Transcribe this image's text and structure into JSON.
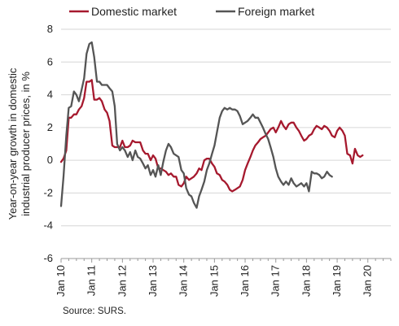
{
  "chart_data": {
    "type": "line",
    "ylabel_lines": [
      "Year-on-year growth in domestic",
      "industrial producer prices, in %"
    ],
    "xlabel": "",
    "ylim": [
      -6,
      8
    ],
    "yticks": [
      -6,
      -4,
      -2,
      0,
      2,
      4,
      6,
      8
    ],
    "xlim": [
      2010.0,
      2020.75
    ],
    "xtick_labels": [
      "Jan 10",
      "Jan 11",
      "Jan 12",
      "Jan 13",
      "Jan 14",
      "Jan 15",
      "Jan 16",
      "Jan 17",
      "Jan 18",
      "Jan 19",
      "Jan 20"
    ],
    "xtick_values": [
      2010,
      2011,
      2012,
      2013,
      2014,
      2015,
      2016,
      2017,
      2018,
      2019,
      2020
    ],
    "grid": "horizontal",
    "legend_position": "top",
    "series": [
      {
        "name": "Domestic market",
        "color": "#a6192e",
        "points": [
          [
            2010.0,
            -0.1
          ],
          [
            2010.08,
            0.1
          ],
          [
            2010.17,
            0.6
          ],
          [
            2010.25,
            2.6
          ],
          [
            2010.33,
            2.6
          ],
          [
            2010.42,
            2.8
          ],
          [
            2010.5,
            2.8
          ],
          [
            2010.58,
            3.1
          ],
          [
            2010.67,
            3.3
          ],
          [
            2010.75,
            3.8
          ],
          [
            2010.83,
            4.8
          ],
          [
            2010.92,
            4.8
          ],
          [
            2011.0,
            4.9
          ],
          [
            2011.08,
            3.7
          ],
          [
            2011.17,
            3.7
          ],
          [
            2011.25,
            3.8
          ],
          [
            2011.33,
            3.6
          ],
          [
            2011.42,
            3.1
          ],
          [
            2011.5,
            2.9
          ],
          [
            2011.58,
            2.4
          ],
          [
            2011.67,
            0.9
          ],
          [
            2011.75,
            0.8
          ],
          [
            2011.83,
            0.8
          ],
          [
            2011.92,
            0.8
          ],
          [
            2012.0,
            1.2
          ],
          [
            2012.08,
            0.8
          ],
          [
            2012.17,
            0.8
          ],
          [
            2012.25,
            0.9
          ],
          [
            2012.33,
            1.2
          ],
          [
            2012.42,
            1.1
          ],
          [
            2012.5,
            1.1
          ],
          [
            2012.58,
            1.1
          ],
          [
            2012.67,
            0.6
          ],
          [
            2012.75,
            0.4
          ],
          [
            2012.83,
            0.4
          ],
          [
            2012.92,
            0.0
          ],
          [
            2013.0,
            0.3
          ],
          [
            2013.08,
            0.1
          ],
          [
            2013.17,
            -0.5
          ],
          [
            2013.25,
            -0.5
          ],
          [
            2013.33,
            -0.6
          ],
          [
            2013.42,
            -0.7
          ],
          [
            2013.5,
            -0.9
          ],
          [
            2013.58,
            -0.8
          ],
          [
            2013.67,
            -1.0
          ],
          [
            2013.75,
            -1.0
          ],
          [
            2013.83,
            -1.5
          ],
          [
            2013.92,
            -1.6
          ],
          [
            2014.0,
            -1.4
          ],
          [
            2014.08,
            -1.0
          ],
          [
            2014.17,
            -1.2
          ],
          [
            2014.25,
            -1.1
          ],
          [
            2014.33,
            -1.0
          ],
          [
            2014.42,
            -0.8
          ],
          [
            2014.5,
            -0.5
          ],
          [
            2014.58,
            -0.6
          ],
          [
            2014.67,
            0.0
          ],
          [
            2014.75,
            0.1
          ],
          [
            2014.83,
            0.1
          ],
          [
            2014.92,
            -0.2
          ],
          [
            2015.0,
            -0.4
          ],
          [
            2015.08,
            -0.8
          ],
          [
            2015.17,
            -0.9
          ],
          [
            2015.25,
            -1.2
          ],
          [
            2015.33,
            -1.3
          ],
          [
            2015.42,
            -1.5
          ],
          [
            2015.5,
            -1.8
          ],
          [
            2015.58,
            -1.9
          ],
          [
            2015.67,
            -1.8
          ],
          [
            2015.75,
            -1.7
          ],
          [
            2015.83,
            -1.6
          ],
          [
            2015.92,
            -1.2
          ],
          [
            2016.0,
            -0.6
          ],
          [
            2016.08,
            -0.2
          ],
          [
            2016.17,
            0.2
          ],
          [
            2016.25,
            0.6
          ],
          [
            2016.33,
            0.9
          ],
          [
            2016.42,
            1.1
          ],
          [
            2016.5,
            1.3
          ],
          [
            2016.58,
            1.4
          ],
          [
            2016.67,
            1.5
          ],
          [
            2016.75,
            1.7
          ],
          [
            2016.83,
            1.9
          ],
          [
            2016.92,
            2.0
          ],
          [
            2017.0,
            1.7
          ],
          [
            2017.08,
            2.0
          ],
          [
            2017.17,
            2.4
          ],
          [
            2017.25,
            2.1
          ],
          [
            2017.33,
            1.9
          ],
          [
            2017.42,
            2.2
          ],
          [
            2017.5,
            2.3
          ],
          [
            2017.58,
            2.3
          ],
          [
            2017.67,
            2.0
          ],
          [
            2017.75,
            1.8
          ],
          [
            2017.83,
            1.5
          ],
          [
            2017.92,
            1.2
          ],
          [
            2018.0,
            1.3
          ],
          [
            2018.08,
            1.5
          ],
          [
            2018.17,
            1.6
          ],
          [
            2018.25,
            1.9
          ],
          [
            2018.33,
            2.1
          ],
          [
            2018.42,
            2.0
          ],
          [
            2018.5,
            1.9
          ],
          [
            2018.58,
            2.1
          ],
          [
            2018.67,
            2.0
          ],
          [
            2018.75,
            1.8
          ],
          [
            2018.83,
            1.5
          ],
          [
            2018.92,
            1.4
          ],
          [
            2019.0,
            1.8
          ],
          [
            2019.08,
            2.0
          ],
          [
            2019.17,
            1.8
          ],
          [
            2019.25,
            1.5
          ],
          [
            2019.33,
            0.4
          ],
          [
            2019.42,
            0.3
          ],
          [
            2019.5,
            -0.2
          ],
          [
            2019.58,
            0.7
          ],
          [
            2019.67,
            0.3
          ],
          [
            2019.75,
            0.2
          ],
          [
            2019.83,
            0.3
          ]
        ]
      },
      {
        "name": "Foreign market",
        "color": "#555555",
        "points": [
          [
            2010.0,
            -2.8
          ],
          [
            2010.08,
            -1.0
          ],
          [
            2010.17,
            1.5
          ],
          [
            2010.25,
            3.2
          ],
          [
            2010.33,
            3.3
          ],
          [
            2010.42,
            4.2
          ],
          [
            2010.5,
            4.0
          ],
          [
            2010.58,
            3.6
          ],
          [
            2010.67,
            4.3
          ],
          [
            2010.75,
            5.0
          ],
          [
            2010.83,
            6.5
          ],
          [
            2010.92,
            7.1
          ],
          [
            2011.0,
            7.2
          ],
          [
            2011.08,
            6.3
          ],
          [
            2011.17,
            4.8
          ],
          [
            2011.25,
            4.8
          ],
          [
            2011.33,
            4.6
          ],
          [
            2011.42,
            4.6
          ],
          [
            2011.5,
            4.6
          ],
          [
            2011.58,
            4.4
          ],
          [
            2011.67,
            4.2
          ],
          [
            2011.75,
            3.3
          ],
          [
            2011.83,
            1.0
          ],
          [
            2011.92,
            0.6
          ],
          [
            2012.0,
            0.8
          ],
          [
            2012.08,
            0.6
          ],
          [
            2012.17,
            0.2
          ],
          [
            2012.25,
            0.5
          ],
          [
            2012.33,
            0.0
          ],
          [
            2012.42,
            0.6
          ],
          [
            2012.5,
            0.2
          ],
          [
            2012.58,
            0.1
          ],
          [
            2012.67,
            -0.2
          ],
          [
            2012.75,
            -0.5
          ],
          [
            2012.83,
            -0.3
          ],
          [
            2012.92,
            -0.9
          ],
          [
            2013.0,
            -0.6
          ],
          [
            2013.08,
            -1.0
          ],
          [
            2013.17,
            -0.3
          ],
          [
            2013.25,
            -0.9
          ],
          [
            2013.33,
            -0.1
          ],
          [
            2013.42,
            0.6
          ],
          [
            2013.5,
            1.0
          ],
          [
            2013.58,
            0.8
          ],
          [
            2013.67,
            0.4
          ],
          [
            2013.75,
            0.3
          ],
          [
            2013.83,
            0.2
          ],
          [
            2013.92,
            -0.6
          ],
          [
            2014.0,
            -0.8
          ],
          [
            2014.08,
            -1.7
          ],
          [
            2014.17,
            -2.1
          ],
          [
            2014.25,
            -2.2
          ],
          [
            2014.33,
            -2.6
          ],
          [
            2014.42,
            -2.9
          ],
          [
            2014.5,
            -2.2
          ],
          [
            2014.58,
            -1.8
          ],
          [
            2014.67,
            -1.3
          ],
          [
            2014.75,
            -0.6
          ],
          [
            2014.83,
            -0.2
          ],
          [
            2014.92,
            0.4
          ],
          [
            2015.0,
            0.9
          ],
          [
            2015.08,
            1.7
          ],
          [
            2015.17,
            2.6
          ],
          [
            2015.25,
            3.0
          ],
          [
            2015.33,
            3.2
          ],
          [
            2015.42,
            3.1
          ],
          [
            2015.5,
            3.2
          ],
          [
            2015.58,
            3.1
          ],
          [
            2015.67,
            3.1
          ],
          [
            2015.75,
            3.0
          ],
          [
            2015.83,
            2.7
          ],
          [
            2015.92,
            2.2
          ],
          [
            2016.0,
            2.3
          ],
          [
            2016.08,
            2.4
          ],
          [
            2016.17,
            2.6
          ],
          [
            2016.25,
            2.8
          ],
          [
            2016.33,
            2.6
          ],
          [
            2016.42,
            2.6
          ],
          [
            2016.5,
            2.3
          ],
          [
            2016.58,
            2.0
          ],
          [
            2016.67,
            1.6
          ],
          [
            2016.75,
            1.3
          ],
          [
            2016.83,
            0.8
          ],
          [
            2016.92,
            0.2
          ],
          [
            2017.0,
            -0.5
          ],
          [
            2017.08,
            -1.0
          ],
          [
            2017.17,
            -1.3
          ],
          [
            2017.25,
            -1.5
          ],
          [
            2017.33,
            -1.3
          ],
          [
            2017.42,
            -1.5
          ],
          [
            2017.5,
            -1.1
          ],
          [
            2017.58,
            -1.4
          ],
          [
            2017.67,
            -1.6
          ],
          [
            2017.75,
            -1.5
          ],
          [
            2017.83,
            -1.4
          ],
          [
            2017.92,
            -1.6
          ],
          [
            2018.0,
            -1.4
          ],
          [
            2018.08,
            -1.9
          ],
          [
            2018.17,
            -0.7
          ],
          [
            2018.25,
            -0.8
          ],
          [
            2018.33,
            -0.8
          ],
          [
            2018.42,
            -0.9
          ],
          [
            2018.5,
            -1.1
          ],
          [
            2018.58,
            -1.0
          ],
          [
            2018.67,
            -0.7
          ],
          [
            2018.75,
            -0.9
          ],
          [
            2018.83,
            -1.0
          ]
        ]
      }
    ]
  },
  "source_text": "Source: SURS."
}
